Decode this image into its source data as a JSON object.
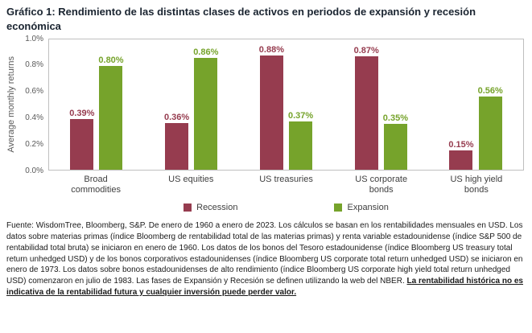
{
  "title": "Gráfico 1: Rendimiento de las distintas clases de activos en periodos de expansión y recesión económica",
  "chart_data": {
    "type": "bar",
    "title": "Rendimiento de las distintas clases de activos en periodos de expansión y recesión económica",
    "xlabel": "",
    "ylabel": "Average monthly returns",
    "ylim": [
      0,
      1.0
    ],
    "y_ticks": [
      "1.0%",
      "0.8%",
      "0.6%",
      "0.4%",
      "0.2%",
      "0.0%"
    ],
    "grid": false,
    "legend_position": "bottom",
    "categories": [
      "Broad commodities",
      "US equities",
      "US treasuries",
      "US corporate bonds",
      "US high yield bonds"
    ],
    "series": [
      {
        "name": "Recession",
        "color": "#963C4F",
        "values": [
          0.39,
          0.36,
          0.88,
          0.87,
          0.15
        ],
        "labels": [
          "0.39%",
          "0.36%",
          "0.88%",
          "0.87%",
          "0.15%"
        ]
      },
      {
        "name": "Expansion",
        "color": "#76A32B",
        "values": [
          0.8,
          0.86,
          0.37,
          0.35,
          0.56
        ],
        "labels": [
          "0.80%",
          "0.86%",
          "0.37%",
          "0.35%",
          "0.56%"
        ]
      }
    ]
  },
  "footer": {
    "segments": [
      {
        "text": "Fuente: WisdomTree, Bloomberg, S&P. De enero de 1960 a enero de 2023. Los cálculos se basan en los rentabilidades mensuales en USD. Los datos sobre materias primas (índice Bloomberg de rentabilidad total de las materias primas) y renta variable estadounidense (índice S&P 500 de rentabilidad total bruta) se iniciaron en enero de 1960. Los datos de los bonos del Tesoro estadounidense (índice Bloomberg US treasury total return unhedged USD) y de los bonos corporativos estadounidenses (índice Bloomberg US corporate total return unhedged USD) se iniciaron en enero de 1973. Los datos sobre bonos estadounidenses de alto rendimiento (índice Bloomberg US corporate high yield total return unhedged USD) comenzaron en julio de 1983. Las fases de Expansión y Recesión se definen utilizando la web del NBER. ",
        "bold": false,
        "underline": false
      },
      {
        "text": "La rentabilidad histórica no es indicativa de la rentabilidad futura y cualquier inversión puede perder valor.",
        "bold": true,
        "underline": true
      }
    ]
  }
}
